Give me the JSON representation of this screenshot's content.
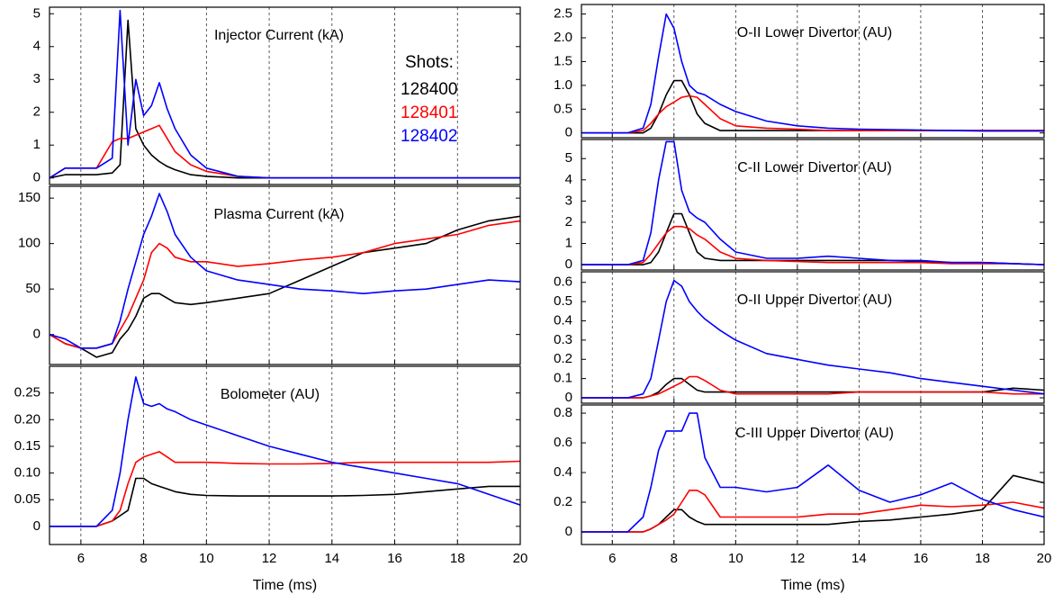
{
  "chart_data": [
    {
      "type": "line",
      "title": "Injector Current (kA)",
      "legend_title": "Shots:",
      "legend": "upper right",
      "x": [
        5,
        5.5,
        6,
        6.5,
        7,
        7.25,
        7.5,
        7.75,
        8,
        8.25,
        8.5,
        8.75,
        9,
        9.5,
        10,
        11,
        12,
        13,
        14,
        15,
        16,
        17,
        18,
        19,
        20
      ],
      "xlim": [
        5,
        20
      ],
      "xticks": [
        6,
        8,
        10,
        12,
        14,
        16,
        18,
        20
      ],
      "ylim": [
        -0.2,
        5.2
      ],
      "yticks": [
        0,
        1,
        2,
        3,
        4,
        5
      ],
      "grid": true,
      "series": [
        {
          "name": "128400",
          "color": "#000000",
          "values": [
            0,
            0.1,
            0.1,
            0.1,
            0.15,
            0.4,
            4.8,
            1.5,
            1.0,
            0.7,
            0.5,
            0.35,
            0.25,
            0.1,
            0.05,
            0,
            0,
            0,
            0,
            0,
            0,
            0,
            0,
            0,
            0
          ]
        },
        {
          "name": "128401",
          "color": "#ff0000",
          "values": [
            0,
            0.3,
            0.3,
            0.3,
            1.1,
            1.2,
            1.2,
            1.3,
            1.4,
            1.5,
            1.6,
            1.2,
            0.8,
            0.4,
            0.2,
            0.05,
            0,
            0,
            0,
            0,
            0,
            0,
            0,
            0,
            0
          ]
        },
        {
          "name": "128402",
          "color": "#0000ff",
          "values": [
            0,
            0.3,
            0.3,
            0.3,
            0.6,
            5.1,
            1.0,
            3.0,
            1.9,
            2.2,
            2.9,
            2.1,
            1.5,
            0.7,
            0.3,
            0.05,
            0,
            0,
            0,
            0,
            0,
            0,
            0,
            0,
            0
          ]
        }
      ]
    },
    {
      "type": "line",
      "title": "Plasma Current (kA)",
      "x": [
        5,
        5.5,
        6,
        6.5,
        7,
        7.25,
        7.5,
        7.75,
        8,
        8.25,
        8.5,
        8.75,
        9,
        9.5,
        10,
        11,
        12,
        13,
        14,
        15,
        16,
        17,
        18,
        19,
        20
      ],
      "xlim": [
        5,
        20
      ],
      "xticks": [
        6,
        8,
        10,
        12,
        14,
        16,
        18,
        20
      ],
      "ylim": [
        -33,
        163
      ],
      "yticks": [
        0,
        50,
        100,
        150
      ],
      "grid": true,
      "series": [
        {
          "color": "#000000",
          "values": [
            0,
            -10,
            -15,
            -25,
            -20,
            -5,
            5,
            20,
            40,
            45,
            45,
            40,
            35,
            33,
            35,
            40,
            45,
            60,
            75,
            90,
            95,
            100,
            115,
            125,
            130
          ]
        },
        {
          "color": "#ff0000",
          "values": [
            0,
            -10,
            -15,
            -15,
            -10,
            5,
            20,
            40,
            60,
            90,
            100,
            95,
            85,
            80,
            80,
            75,
            78,
            82,
            85,
            90,
            100,
            105,
            110,
            120,
            125
          ]
        },
        {
          "color": "#0000ff",
          "values": [
            0,
            -5,
            -15,
            -15,
            -10,
            15,
            50,
            80,
            110,
            130,
            155,
            135,
            110,
            85,
            70,
            60,
            55,
            50,
            48,
            45,
            48,
            50,
            55,
            60,
            58
          ]
        }
      ]
    },
    {
      "type": "line",
      "title": "Bolometer (AU)",
      "xlabel": "Time (ms)",
      "x": [
        5,
        5.5,
        6,
        6.5,
        7,
        7.25,
        7.5,
        7.75,
        8,
        8.25,
        8.5,
        8.75,
        9,
        9.5,
        10,
        11,
        12,
        13,
        14,
        15,
        16,
        17,
        18,
        19,
        20
      ],
      "xlim": [
        5,
        20
      ],
      "xticks": [
        6,
        8,
        10,
        12,
        14,
        16,
        18,
        20
      ],
      "ylim": [
        -0.034,
        0.3
      ],
      "yticks": [
        0,
        0.05,
        {
          "value": 0.1,
          "label": "0.10"
        },
        0.15,
        {
          "value": 0.2,
          "label": "0.20"
        },
        0.25
      ],
      "grid": true,
      "series": [
        {
          "color": "#000000",
          "values": [
            0,
            0,
            0,
            0,
            0.01,
            0.02,
            0.03,
            0.09,
            0.09,
            0.08,
            0.075,
            0.07,
            0.065,
            0.06,
            0.058,
            0.057,
            0.057,
            0.057,
            0.057,
            0.058,
            0.06,
            0.065,
            0.07,
            0.075,
            0.075
          ]
        },
        {
          "color": "#ff0000",
          "values": [
            0,
            0,
            0,
            0,
            0.01,
            0.03,
            0.08,
            0.12,
            0.13,
            0.135,
            0.14,
            0.13,
            0.12,
            0.12,
            0.12,
            0.118,
            0.117,
            0.117,
            0.118,
            0.12,
            0.12,
            0.12,
            0.12,
            0.12,
            0.122
          ]
        },
        {
          "color": "#0000ff",
          "values": [
            0,
            0,
            0,
            0,
            0.03,
            0.1,
            0.2,
            0.28,
            0.23,
            0.225,
            0.23,
            0.22,
            0.215,
            0.2,
            0.19,
            0.17,
            0.15,
            0.135,
            0.12,
            0.11,
            0.1,
            0.09,
            0.08,
            0.06,
            0.04
          ]
        }
      ]
    },
    {
      "type": "line",
      "title": "O-II Lower Divertor (AU)",
      "x": [
        5,
        5.5,
        6,
        6.5,
        7,
        7.25,
        7.5,
        7.75,
        8,
        8.25,
        8.5,
        8.75,
        9,
        9.5,
        10,
        11,
        12,
        13,
        14,
        15,
        16,
        17,
        18,
        19,
        20
      ],
      "xlim": [
        5,
        20
      ],
      "xticks": [
        6,
        8,
        10,
        12,
        14,
        16,
        18,
        20
      ],
      "ylim": [
        -0.1,
        2.7
      ],
      "yticks": [
        0,
        0.5,
        {
          "value": 1,
          "label": "1.0"
        },
        1.5,
        {
          "value": 2,
          "label": "2.0"
        },
        2.5
      ],
      "grid": true,
      "series": [
        {
          "color": "#000000",
          "values": [
            0,
            0,
            0,
            0,
            0,
            0.1,
            0.4,
            0.8,
            1.1,
            1.1,
            0.8,
            0.4,
            0.2,
            0.05,
            0.05,
            0.05,
            0.05,
            0.05,
            0.05,
            0.05,
            0.05,
            0.05,
            0.05,
            0.05,
            0.05
          ]
        },
        {
          "color": "#ff0000",
          "values": [
            0,
            0,
            0,
            0,
            0.05,
            0.2,
            0.4,
            0.55,
            0.65,
            0.75,
            0.78,
            0.75,
            0.6,
            0.3,
            0.15,
            0.1,
            0.08,
            0.05,
            0.05,
            0.05,
            0.05,
            0.05,
            0.05,
            0.05,
            0.05
          ]
        },
        {
          "color": "#0000ff",
          "values": [
            0,
            0,
            0,
            0,
            0.1,
            0.6,
            1.6,
            2.5,
            2.2,
            1.5,
            1.0,
            0.85,
            0.8,
            0.6,
            0.45,
            0.25,
            0.15,
            0.1,
            0.08,
            0.07,
            0.06,
            0.05,
            0.04,
            0.04,
            0.04
          ]
        }
      ]
    },
    {
      "type": "line",
      "title": "C-II Lower Divertor (AU)",
      "x": [
        5,
        5.5,
        6,
        6.5,
        7,
        7.25,
        7.5,
        7.75,
        8,
        8.25,
        8.5,
        8.75,
        9,
        9.5,
        10,
        11,
        12,
        13,
        14,
        15,
        16,
        17,
        18,
        19,
        20
      ],
      "xlim": [
        5,
        20
      ],
      "xticks": [
        6,
        8,
        10,
        12,
        14,
        16,
        18,
        20
      ],
      "ylim": [
        -0.25,
        5.9
      ],
      "yticks": [
        0,
        1,
        2,
        3,
        4,
        5
      ],
      "grid": true,
      "series": [
        {
          "color": "#000000",
          "values": [
            0,
            0,
            0,
            0,
            0,
            0.1,
            0.6,
            1.5,
            2.4,
            2.4,
            1.5,
            0.6,
            0.3,
            0.2,
            0.2,
            0.2,
            0.2,
            0.2,
            0.2,
            0.2,
            0.15,
            0.1,
            0.1,
            0.05,
            0
          ]
        },
        {
          "color": "#ff0000",
          "values": [
            0,
            0,
            0,
            0,
            0.1,
            0.5,
            1.0,
            1.5,
            1.8,
            1.8,
            1.7,
            1.4,
            1.2,
            0.6,
            0.3,
            0.2,
            0.15,
            0.1,
            0.1,
            0.1,
            0.1,
            0.05,
            0.05,
            0.05,
            0
          ]
        },
        {
          "color": "#0000ff",
          "values": [
            0,
            0,
            0,
            0,
            0.2,
            1.5,
            4.0,
            5.8,
            5.8,
            3.5,
            2.5,
            2.2,
            2.0,
            1.2,
            0.6,
            0.3,
            0.3,
            0.4,
            0.3,
            0.2,
            0.2,
            0.1,
            0.1,
            0.05,
            0
          ]
        }
      ]
    },
    {
      "type": "line",
      "title": "O-II Upper Divertor (AU)",
      "x": [
        5,
        5.5,
        6,
        6.5,
        7,
        7.25,
        7.5,
        7.75,
        8,
        8.25,
        8.5,
        8.75,
        9,
        9.5,
        10,
        11,
        12,
        13,
        14,
        15,
        16,
        17,
        18,
        19,
        20
      ],
      "xlim": [
        5,
        20
      ],
      "xticks": [
        6,
        8,
        10,
        12,
        14,
        16,
        18,
        20
      ],
      "ylim": [
        -0.028,
        0.655
      ],
      "yticks": [
        0,
        0.1,
        0.2,
        0.3,
        0.4,
        0.5,
        0.6
      ],
      "grid": true,
      "series": [
        {
          "color": "#000000",
          "values": [
            0,
            0,
            0,
            0,
            0,
            0.01,
            0.03,
            0.07,
            0.1,
            0.1,
            0.07,
            0.04,
            0.03,
            0.03,
            0.03,
            0.03,
            0.03,
            0.03,
            0.03,
            0.03,
            0.03,
            0.03,
            0.03,
            0.05,
            0.04
          ]
        },
        {
          "color": "#ff0000",
          "values": [
            0,
            0,
            0,
            0,
            0,
            0.01,
            0.02,
            0.04,
            0.06,
            0.08,
            0.11,
            0.11,
            0.09,
            0.04,
            0.02,
            0.02,
            0.02,
            0.02,
            0.03,
            0.03,
            0.03,
            0.03,
            0.03,
            0.02,
            0.02
          ]
        },
        {
          "color": "#0000ff",
          "values": [
            0,
            0,
            0,
            0,
            0.02,
            0.1,
            0.3,
            0.5,
            0.61,
            0.58,
            0.5,
            0.45,
            0.41,
            0.35,
            0.3,
            0.23,
            0.2,
            0.17,
            0.15,
            0.13,
            0.1,
            0.08,
            0.06,
            0.04,
            0.02
          ]
        }
      ]
    },
    {
      "type": "line",
      "title": "C-III Upper Divertor (AU)",
      "xlabel": "Time (ms)",
      "x": [
        5,
        5.5,
        6,
        6.5,
        7,
        7.25,
        7.5,
        7.75,
        8,
        8.25,
        8.5,
        8.75,
        9,
        9.5,
        10,
        11,
        12,
        13,
        14,
        15,
        16,
        17,
        18,
        19,
        20
      ],
      "xlim": [
        5,
        20
      ],
      "xticks": [
        6,
        8,
        10,
        12,
        14,
        16,
        18,
        20
      ],
      "ylim": [
        -0.085,
        0.855
      ],
      "yticks": [
        0,
        0.2,
        0.4,
        0.6,
        0.8
      ],
      "grid": true,
      "series": [
        {
          "color": "#000000",
          "values": [
            0,
            0,
            0,
            0,
            0,
            0.02,
            0.05,
            0.1,
            0.15,
            0.15,
            0.1,
            0.07,
            0.05,
            0.05,
            0.05,
            0.05,
            0.05,
            0.05,
            0.07,
            0.08,
            0.1,
            0.12,
            0.15,
            0.38,
            0.33
          ]
        },
        {
          "color": "#ff0000",
          "values": [
            0,
            0,
            0,
            0,
            0,
            0.02,
            0.05,
            0.08,
            0.12,
            0.2,
            0.28,
            0.28,
            0.25,
            0.1,
            0.1,
            0.1,
            0.1,
            0.12,
            0.12,
            0.15,
            0.18,
            0.17,
            0.18,
            0.2,
            0.16
          ]
        },
        {
          "color": "#0000ff",
          "values": [
            0,
            0,
            0,
            0,
            0.1,
            0.3,
            0.55,
            0.68,
            0.68,
            0.68,
            0.8,
            0.8,
            0.5,
            0.3,
            0.3,
            0.27,
            0.3,
            0.45,
            0.28,
            0.2,
            0.25,
            0.33,
            0.22,
            0.15,
            0.1
          ]
        }
      ]
    }
  ]
}
